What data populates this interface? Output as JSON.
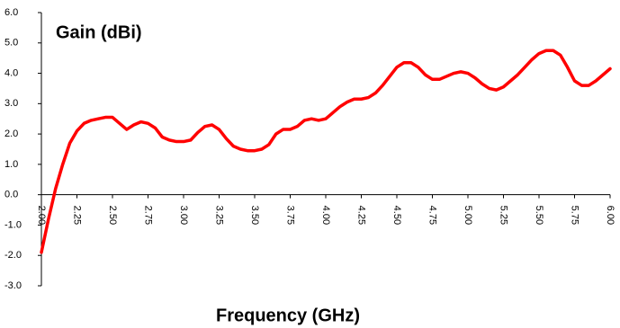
{
  "chart_data": {
    "type": "line",
    "title": "Gain (dBi)",
    "x_label": "Frequency (GHz)",
    "x": [
      2.0,
      2.05,
      2.1,
      2.15,
      2.2,
      2.25,
      2.3,
      2.35,
      2.4,
      2.45,
      2.5,
      2.55,
      2.6,
      2.65,
      2.7,
      2.75,
      2.8,
      2.85,
      2.9,
      2.95,
      3.0,
      3.05,
      3.1,
      3.15,
      3.2,
      3.25,
      3.3,
      3.35,
      3.4,
      3.45,
      3.5,
      3.55,
      3.6,
      3.65,
      3.7,
      3.75,
      3.8,
      3.85,
      3.9,
      3.95,
      4.0,
      4.05,
      4.1,
      4.15,
      4.2,
      4.25,
      4.3,
      4.35,
      4.4,
      4.45,
      4.5,
      4.55,
      4.6,
      4.65,
      4.7,
      4.75,
      4.8,
      4.85,
      4.9,
      4.95,
      5.0,
      5.05,
      5.1,
      5.15,
      5.2,
      5.25,
      5.3,
      5.35,
      5.4,
      5.45,
      5.5,
      5.55,
      5.6,
      5.65,
      5.7,
      5.75,
      5.8,
      5.85,
      5.9,
      5.95,
      6.0
    ],
    "series": [
      {
        "color": "#ff0000",
        "values": [
          -1.9,
          -0.8,
          0.2,
          1.0,
          1.7,
          2.1,
          2.35,
          2.45,
          2.5,
          2.55,
          2.55,
          2.35,
          2.15,
          2.3,
          2.4,
          2.35,
          2.2,
          1.9,
          1.8,
          1.75,
          1.75,
          1.8,
          2.05,
          2.25,
          2.3,
          2.15,
          1.85,
          1.6,
          1.5,
          1.45,
          1.45,
          1.5,
          1.65,
          2.0,
          2.15,
          2.15,
          2.25,
          2.45,
          2.5,
          2.45,
          2.5,
          2.7,
          2.9,
          3.05,
          3.15,
          3.15,
          3.2,
          3.35,
          3.6,
          3.9,
          4.2,
          4.35,
          4.35,
          4.2,
          3.95,
          3.8,
          3.8,
          3.9,
          4.0,
          4.05,
          4.0,
          3.85,
          3.65,
          3.5,
          3.45,
          3.55,
          3.75,
          3.95,
          4.2,
          4.45,
          4.65,
          4.75,
          4.75,
          4.6,
          4.2,
          3.75,
          3.6,
          3.6,
          3.75,
          3.95,
          4.15
        ]
      }
    ],
    "xlim": [
      2.0,
      6.0
    ],
    "ylim": [
      -3.0,
      6.0
    ],
    "xticks": [
      {
        "value": 2.0,
        "label": "2.00"
      },
      {
        "value": 2.25,
        "label": "2.25"
      },
      {
        "value": 2.5,
        "label": "2.50"
      },
      {
        "value": 2.75,
        "label": "2.75"
      },
      {
        "value": 3.0,
        "label": "3.00"
      },
      {
        "value": 3.25,
        "label": "3.25"
      },
      {
        "value": 3.5,
        "label": "3.50"
      },
      {
        "value": 3.75,
        "label": "3.75"
      },
      {
        "value": 4.0,
        "label": "4.00"
      },
      {
        "value": 4.25,
        "label": "4.25"
      },
      {
        "value": 4.5,
        "label": "4.50"
      },
      {
        "value": 4.75,
        "label": "4.75"
      },
      {
        "value": 5.0,
        "label": "5.00"
      },
      {
        "value": 5.25,
        "label": "5.25"
      },
      {
        "value": 5.5,
        "label": "5.50"
      },
      {
        "value": 5.75,
        "label": "5.75"
      },
      {
        "value": 6.0,
        "label": "6.00"
      }
    ],
    "yticks": [
      {
        "value": 6,
        "label": "6.0"
      },
      {
        "value": 5,
        "label": "5.0"
      },
      {
        "value": 4,
        "label": "4.0"
      },
      {
        "value": 3,
        "label": "3.0"
      },
      {
        "value": 2,
        "label": "2.0"
      },
      {
        "value": 1,
        "label": "1.0"
      },
      {
        "value": 0,
        "label": "0.0"
      },
      {
        "value": -1,
        "label": "-1.0"
      },
      {
        "value": -2,
        "label": "-2.0"
      },
      {
        "value": -3,
        "label": "-3.0"
      }
    ]
  }
}
